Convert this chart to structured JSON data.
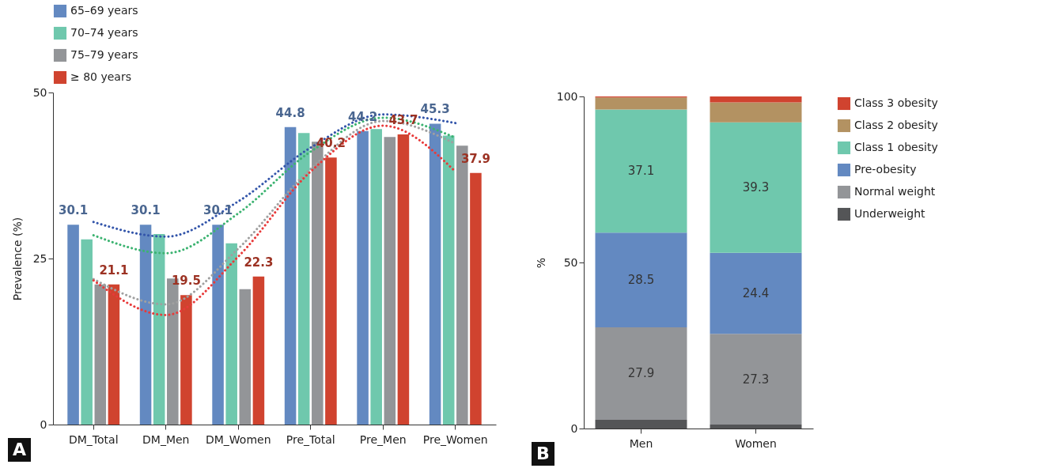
{
  "chart_data": [
    {
      "type": "bar",
      "categories": [
        "DM_Total",
        "DM_Men",
        "DM_Women",
        "Pre_Total",
        "Pre_Men",
        "Pre_Women"
      ],
      "ylabel": "Prevalence (%)",
      "ylim": [
        0,
        50
      ],
      "yticks": [
        0,
        25,
        50
      ],
      "grid": false,
      "legend": "top",
      "annotations": [
        "A"
      ],
      "series": [
        {
          "name": "65–69 years",
          "color": "#6389c1",
          "values": [
            30.1,
            30.1,
            30.1,
            44.8,
            44.2,
            45.3
          ],
          "value_labels": [
            "30.1",
            "30.1",
            "30.1",
            "44.8",
            "44.2",
            "45.3"
          ]
        },
        {
          "name": "70–74 years",
          "color": "#6fc8ad",
          "values": [
            27.9,
            28.7,
            27.3,
            43.9,
            44.5,
            43.5
          ]
        },
        {
          "name": "75–79 years",
          "color": "#939598",
          "values": [
            21.1,
            22.0,
            20.4,
            42.6,
            43.3,
            42.0
          ]
        },
        {
          "name": "≥ 80 years",
          "color": "#d0432f",
          "values": [
            21.1,
            19.5,
            22.3,
            40.2,
            43.7,
            37.9
          ],
          "value_labels": [
            "21.1",
            "19.5",
            "22.3",
            "40.2",
            "43.7",
            "37.9"
          ]
        },
        {
          "type": "line",
          "line_style": "dotted",
          "color": "#3355aa",
          "values": [
            30.5,
            28.3,
            33.6,
            41.7,
            46.7,
            45.4
          ]
        },
        {
          "type": "line",
          "line_style": "dotted",
          "color": "#3cb371",
          "values": [
            28.5,
            25.8,
            31.8,
            41.1,
            46.2,
            43.2
          ]
        },
        {
          "type": "line",
          "line_style": "dotted",
          "color": "#a0a0a0",
          "values": [
            21.9,
            18.1,
            26.5,
            38.5,
            45.7,
            42.3
          ]
        },
        {
          "type": "line",
          "line_style": "dotted",
          "color": "#e83a3a",
          "values": [
            21.7,
            16.5,
            25.3,
            38.1,
            45.0,
            38.1
          ]
        }
      ]
    },
    {
      "type": "bar",
      "stacked": true,
      "categories": [
        "Men",
        "Women"
      ],
      "ylabel": "%",
      "ylim": [
        0,
        100
      ],
      "yticks": [
        0,
        50,
        100
      ],
      "grid": false,
      "legend": "right",
      "annotations": [
        "B"
      ],
      "series": [
        {
          "name": "Underweight",
          "color": "#545557",
          "values": [
            2.6,
            1.2
          ]
        },
        {
          "name": "Normal weight",
          "color": "#939598",
          "values": [
            27.9,
            27.3
          ],
          "value_labels": [
            "27.9",
            "27.3"
          ]
        },
        {
          "name": "Pre-obesity",
          "color": "#6389c1",
          "values": [
            28.5,
            24.4
          ],
          "value_labels": [
            "28.5",
            "24.4"
          ]
        },
        {
          "name": "Class 1 obesity",
          "color": "#6fc8ad",
          "values": [
            37.1,
            39.3
          ],
          "value_labels": [
            "37.1",
            "39.3"
          ]
        },
        {
          "name": "Class 2 obesity",
          "color": "#b39262",
          "values": [
            3.6,
            6.0
          ]
        },
        {
          "name": "Class 3 obesity",
          "color": "#d0432f",
          "values": [
            0.3,
            1.8
          ]
        }
      ]
    }
  ]
}
